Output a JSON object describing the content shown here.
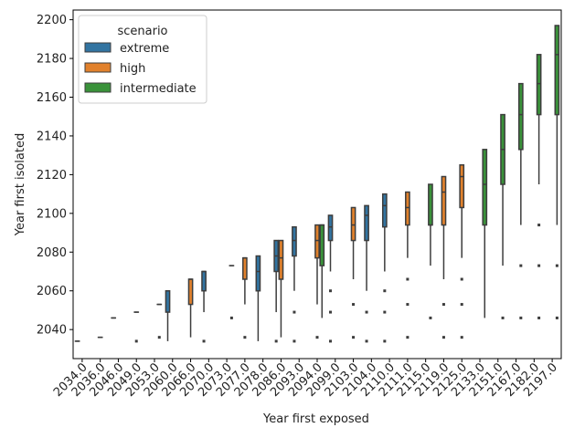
{
  "chart_data": {
    "type": "box",
    "xlabel": "Year first exposed",
    "ylabel": "Year first isolated",
    "ylim": [
      2025,
      2205
    ],
    "yticks": [
      2040,
      2060,
      2080,
      2100,
      2120,
      2140,
      2160,
      2180,
      2200
    ],
    "grid": false,
    "legend": {
      "title": "scenario",
      "placement": "top-left",
      "entries": [
        "extreme",
        "high",
        "intermediate"
      ]
    },
    "colors": {
      "extreme": "#3274a1",
      "high": "#e1812c",
      "intermediate": "#3a923a",
      "line": "#3d3d3d"
    },
    "categories": [
      "2034.0",
      "2036.0",
      "2046.0",
      "2049.0",
      "2053.0",
      "2060.0",
      "2066.0",
      "2070.0",
      "2073.0",
      "2077.0",
      "2078.0",
      "2086.0",
      "2093.0",
      "2094.0",
      "2099.0",
      "2103.0",
      "2104.0",
      "2110.0",
      "2111.0",
      "2115.0",
      "2119.0",
      "2125.0",
      "2133.0",
      "2151.0",
      "2167.0",
      "2182.0",
      "2197.0"
    ],
    "boxes": [
      {
        "category": "2034.0",
        "scenario": "extreme",
        "q1": 2034,
        "median": 2034,
        "q3": 2034,
        "whislo": 2034,
        "whishi": 2034,
        "fliers": []
      },
      {
        "category": "2036.0",
        "scenario": "high",
        "q1": 2036,
        "median": 2036,
        "q3": 2036,
        "whislo": 2036,
        "whishi": 2036,
        "fliers": []
      },
      {
        "category": "2046.0",
        "scenario": "extreme",
        "q1": 2046,
        "median": 2046,
        "q3": 2046,
        "whislo": 2046,
        "whishi": 2046,
        "fliers": []
      },
      {
        "category": "2049.0",
        "scenario": "high",
        "q1": 2049,
        "median": 2049,
        "q3": 2049,
        "whislo": 2049,
        "whishi": 2049,
        "fliers": [
          2034
        ]
      },
      {
        "category": "2053.0",
        "scenario": "intermediate",
        "q1": 2053,
        "median": 2053,
        "q3": 2053,
        "whislo": 2053,
        "whishi": 2053,
        "fliers": [
          2036
        ]
      },
      {
        "category": "2060.0",
        "scenario": "extreme",
        "q1": 2049,
        "median": 2060,
        "q3": 2060,
        "whislo": 2034,
        "whishi": 2060,
        "fliers": []
      },
      {
        "category": "2066.0",
        "scenario": "high",
        "q1": 2053,
        "median": 2066,
        "q3": 2066,
        "whislo": 2036,
        "whishi": 2066,
        "fliers": []
      },
      {
        "category": "2070.0",
        "scenario": "extreme",
        "q1": 2060,
        "median": 2070,
        "q3": 2070,
        "whislo": 2049,
        "whishi": 2070,
        "fliers": [
          2034
        ]
      },
      {
        "category": "2073.0",
        "scenario": "intermediate",
        "q1": 2073,
        "median": 2073,
        "q3": 2073,
        "whislo": 2073,
        "whishi": 2073,
        "fliers": [
          2046
        ]
      },
      {
        "category": "2077.0",
        "scenario": "high",
        "q1": 2066,
        "median": 2077,
        "q3": 2077,
        "whislo": 2053,
        "whishi": 2077,
        "fliers": [
          2036
        ]
      },
      {
        "category": "2078.0",
        "scenario": "extreme",
        "q1": 2060,
        "median": 2070,
        "q3": 2078,
        "whislo": 2034,
        "whishi": 2078,
        "fliers": []
      },
      {
        "category": "2086.0",
        "scenario": "extreme",
        "q1": 2070,
        "median": 2078,
        "q3": 2086,
        "whislo": 2049,
        "whishi": 2086,
        "fliers": [
          2034
        ]
      },
      {
        "category": "2086.0",
        "scenario": "high",
        "q1": 2066,
        "median": 2077,
        "q3": 2086,
        "whislo": 2036,
        "whishi": 2086,
        "fliers": []
      },
      {
        "category": "2093.0",
        "scenario": "extreme",
        "q1": 2078,
        "median": 2086,
        "q3": 2093,
        "whislo": 2060,
        "whishi": 2093,
        "fliers": [
          2049,
          2034
        ]
      },
      {
        "category": "2094.0",
        "scenario": "high",
        "q1": 2077,
        "median": 2086,
        "q3": 2094,
        "whislo": 2053,
        "whishi": 2094,
        "fliers": [
          2036
        ]
      },
      {
        "category": "2094.0",
        "scenario": "intermediate",
        "q1": 2073,
        "median": 2094,
        "q3": 2094,
        "whislo": 2046,
        "whishi": 2094,
        "fliers": []
      },
      {
        "category": "2099.0",
        "scenario": "extreme",
        "q1": 2086,
        "median": 2093,
        "q3": 2099,
        "whislo": 2070,
        "whishi": 2099,
        "fliers": [
          2060,
          2049,
          2034
        ]
      },
      {
        "category": "2103.0",
        "scenario": "high",
        "q1": 2086,
        "median": 2094,
        "q3": 2103,
        "whislo": 2066,
        "whishi": 2103,
        "fliers": [
          2053,
          2036
        ]
      },
      {
        "category": "2104.0",
        "scenario": "extreme",
        "q1": 2086,
        "median": 2099,
        "q3": 2104,
        "whislo": 2060,
        "whishi": 2104,
        "fliers": [
          2049,
          2034
        ]
      },
      {
        "category": "2110.0",
        "scenario": "extreme",
        "q1": 2093,
        "median": 2104,
        "q3": 2110,
        "whislo": 2070,
        "whishi": 2110,
        "fliers": [
          2060,
          2049,
          2034
        ]
      },
      {
        "category": "2111.0",
        "scenario": "high",
        "q1": 2094,
        "median": 2103,
        "q3": 2111,
        "whislo": 2077,
        "whishi": 2111,
        "fliers": [
          2066,
          2053,
          2036
        ]
      },
      {
        "category": "2115.0",
        "scenario": "intermediate",
        "q1": 2094,
        "median": 2094,
        "q3": 2115,
        "whislo": 2073,
        "whishi": 2115,
        "fliers": [
          2046
        ]
      },
      {
        "category": "2119.0",
        "scenario": "high",
        "q1": 2094,
        "median": 2111,
        "q3": 2119,
        "whislo": 2066,
        "whishi": 2119,
        "fliers": [
          2053,
          2036
        ]
      },
      {
        "category": "2125.0",
        "scenario": "high",
        "q1": 2103,
        "median": 2119,
        "q3": 2125,
        "whislo": 2077,
        "whishi": 2125,
        "fliers": [
          2066,
          2053,
          2036
        ]
      },
      {
        "category": "2133.0",
        "scenario": "intermediate",
        "q1": 2094,
        "median": 2115,
        "q3": 2133,
        "whislo": 2046,
        "whishi": 2133,
        "fliers": []
      },
      {
        "category": "2151.0",
        "scenario": "intermediate",
        "q1": 2115,
        "median": 2133,
        "q3": 2151,
        "whislo": 2073,
        "whishi": 2151,
        "fliers": [
          2046
        ]
      },
      {
        "category": "2167.0",
        "scenario": "intermediate",
        "q1": 2133,
        "median": 2151,
        "q3": 2167,
        "whislo": 2094,
        "whishi": 2167,
        "fliers": [
          2073,
          2046
        ]
      },
      {
        "category": "2182.0",
        "scenario": "intermediate",
        "q1": 2151,
        "median": 2167,
        "q3": 2182,
        "whislo": 2115,
        "whishi": 2182,
        "fliers": [
          2094,
          2073,
          2046
        ]
      },
      {
        "category": "2197.0",
        "scenario": "intermediate",
        "q1": 2151,
        "median": 2182,
        "q3": 2197,
        "whislo": 2094,
        "whishi": 2197,
        "fliers": [
          2073,
          2046
        ]
      }
    ]
  }
}
